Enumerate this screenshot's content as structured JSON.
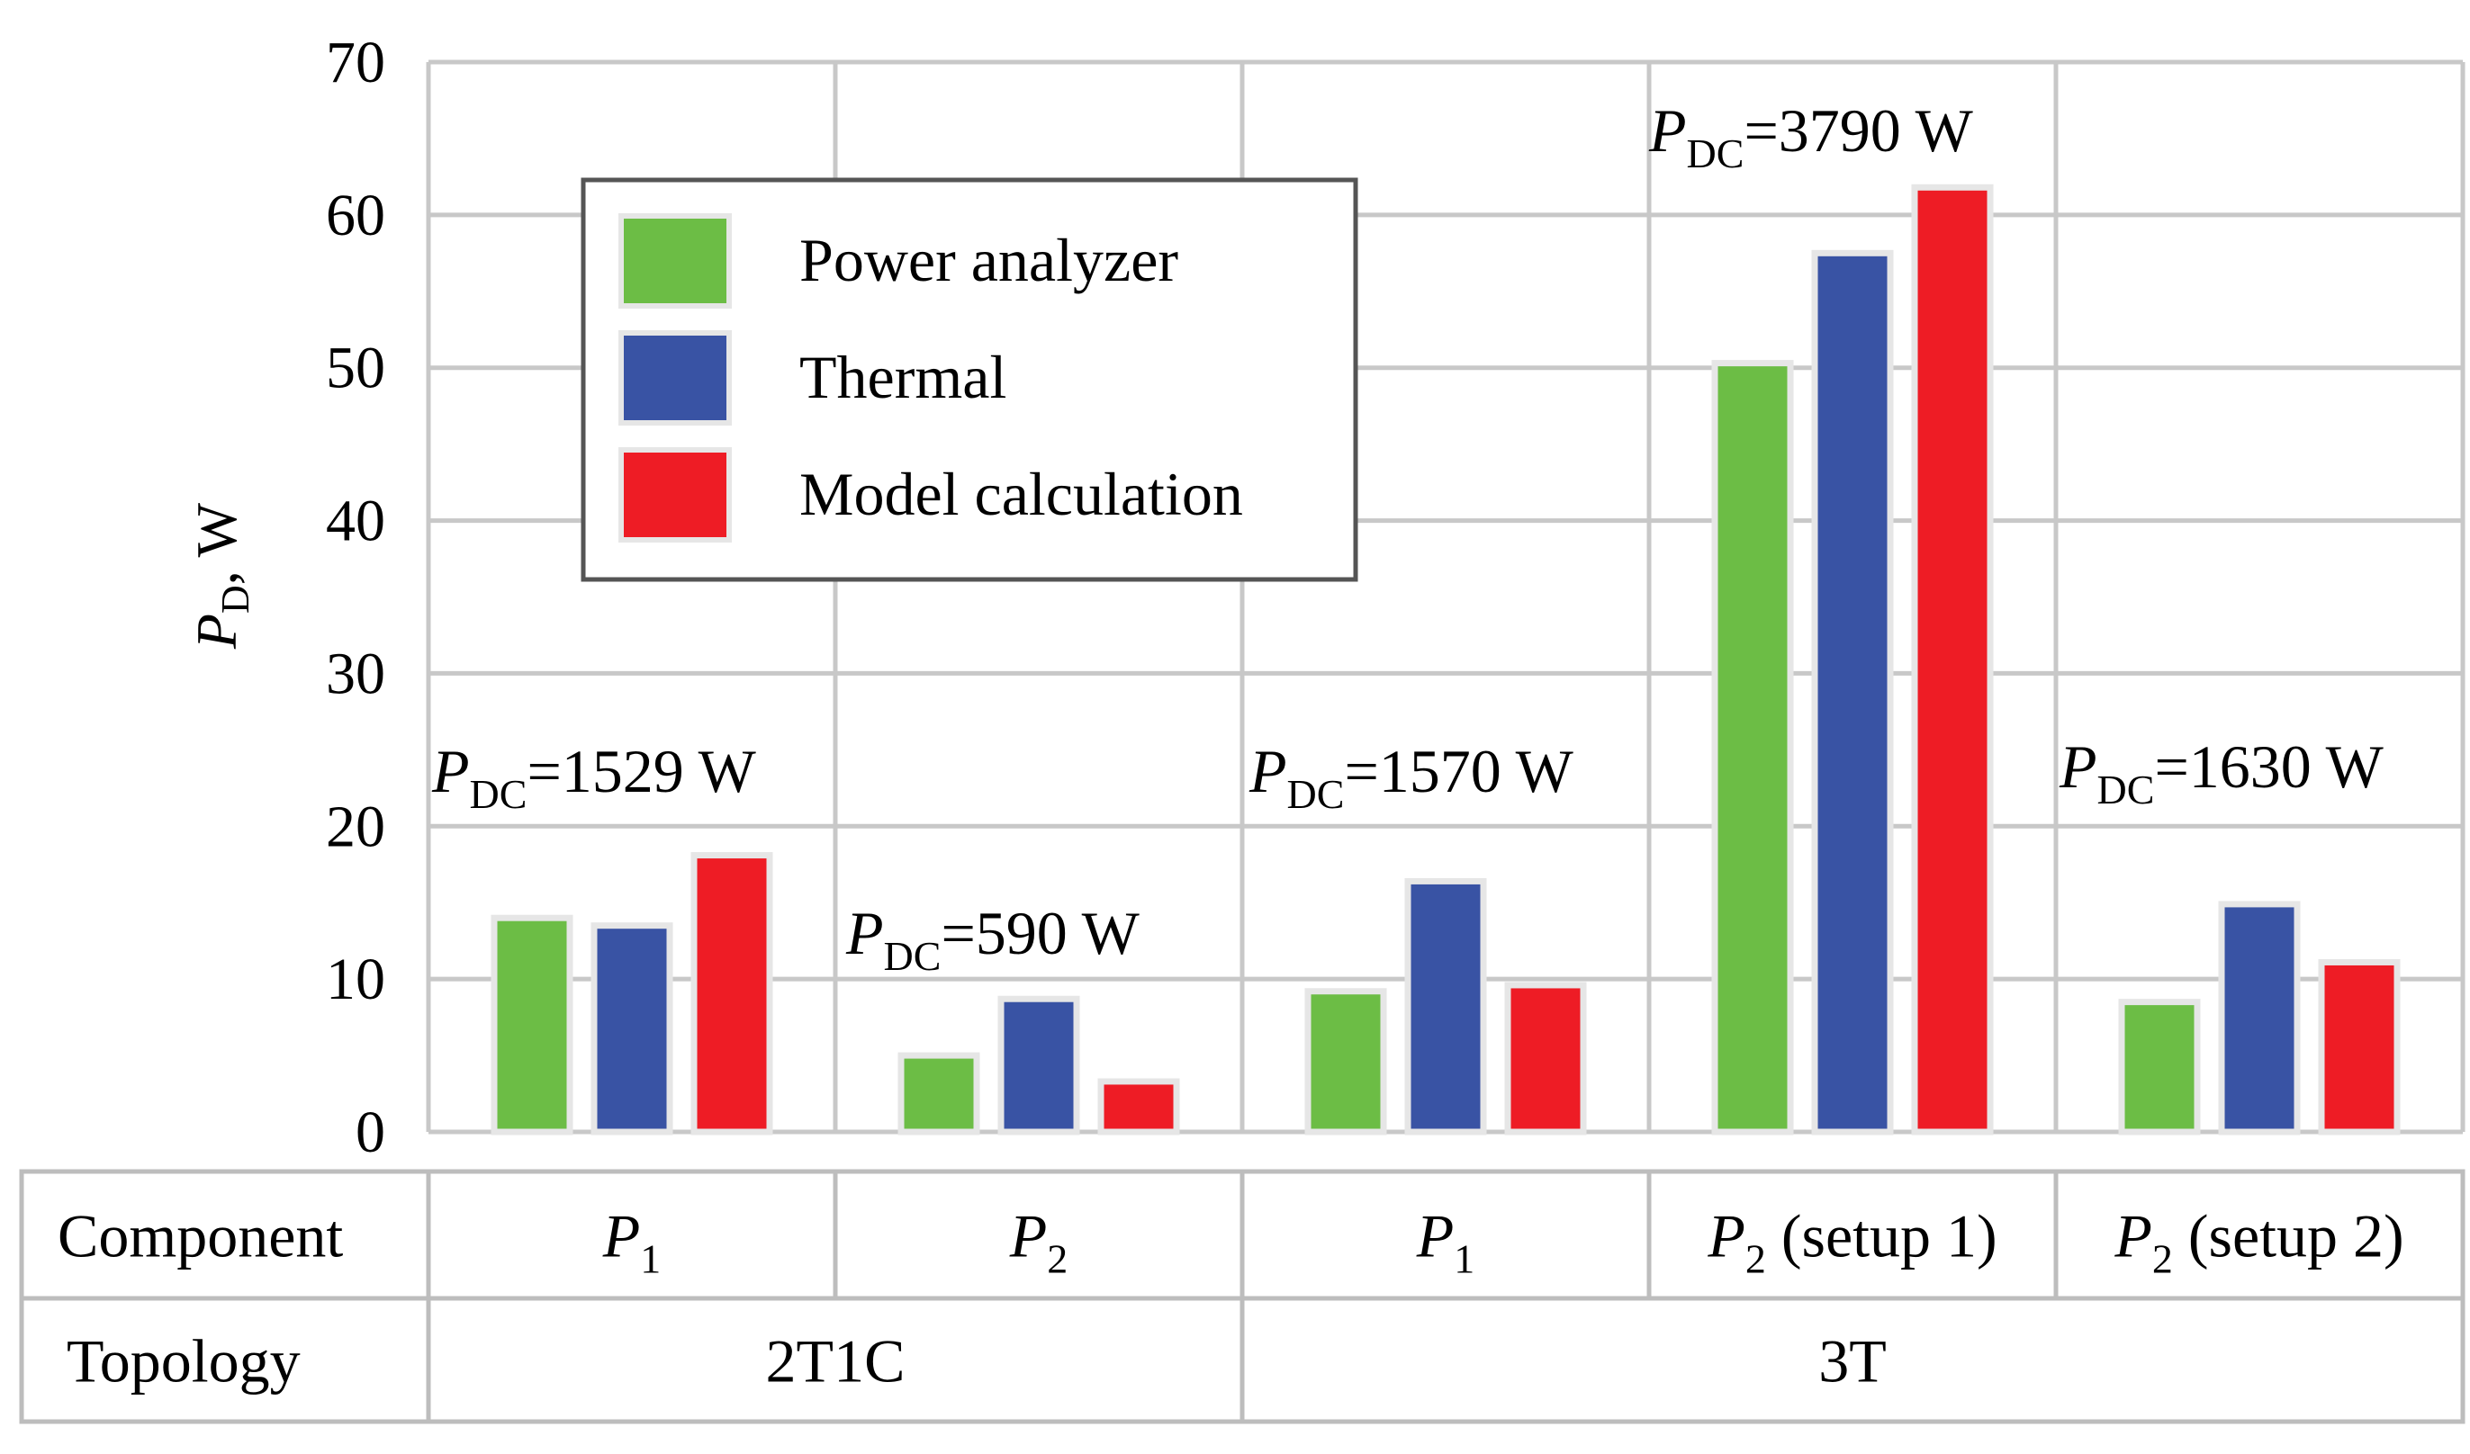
{
  "chart_data": {
    "type": "bar",
    "ylabel": "P",
    "ylabel_sub": "D",
    "ylabel_unit": ", W",
    "ylim": [
      0,
      70
    ],
    "yticks": [
      0,
      10,
      20,
      30,
      40,
      50,
      60,
      70
    ],
    "grid": true,
    "legend_position": "top-left",
    "series": [
      {
        "name": "Power analyzer",
        "color": "#6cbd45",
        "values": [
          14,
          5,
          9.2,
          50.3,
          8.5
        ]
      },
      {
        "name": "Thermal",
        "color": "#3953a4",
        "values": [
          13.5,
          8.7,
          16.4,
          57.5,
          14.9
        ]
      },
      {
        "name": "Model calculation",
        "color": "#ee1c25",
        "values": [
          18.1,
          3.3,
          9.6,
          61.8,
          11.1
        ]
      }
    ],
    "groups": [
      {
        "component": "P",
        "component_sub": "1",
        "component_suffix": "",
        "annotation": {
          "p": "P",
          "sub": "DC",
          "text": "=1529 W"
        }
      },
      {
        "component": "P",
        "component_sub": "2",
        "component_suffix": "",
        "annotation": {
          "p": "P",
          "sub": "DC",
          "text": "=590 W"
        }
      },
      {
        "component": "P",
        "component_sub": "1",
        "component_suffix": "",
        "annotation": {
          "p": "P",
          "sub": "DC",
          "text": "=1570 W"
        }
      },
      {
        "component": "P",
        "component_sub": "2",
        "component_suffix": " (setup 1)",
        "annotation": {
          "p": "P",
          "sub": "DC",
          "text": "=3790 W"
        }
      },
      {
        "component": "P",
        "component_sub": "2",
        "component_suffix": " (setup 2)",
        "annotation": {
          "p": "P",
          "sub": "DC",
          "text": "=1630 W"
        }
      }
    ],
    "table": {
      "row_labels": [
        "Component",
        "Topology"
      ],
      "topologies": [
        {
          "label": "2T1C",
          "span": [
            0,
            1
          ]
        },
        {
          "label": "3T",
          "span": [
            2,
            4
          ]
        }
      ]
    }
  }
}
